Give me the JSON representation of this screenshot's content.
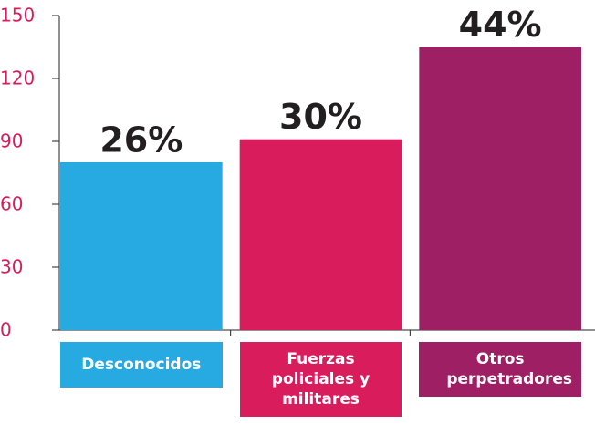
{
  "chart_data": {
    "type": "bar",
    "categories": [
      "Desconocidos",
      "Fuerzas policiales y militares",
      "Otros perpetradores"
    ],
    "values": [
      80,
      91,
      135
    ],
    "value_labels": [
      "26%",
      "30%",
      "44%"
    ],
    "colors": [
      "#27a9e1",
      "#d91c5c",
      "#9e1f63"
    ],
    "ylim": [
      0,
      150
    ],
    "yticks": [
      0,
      30,
      60,
      90,
      120,
      150
    ],
    "tick_color": "#d91c5c",
    "grid": false
  }
}
